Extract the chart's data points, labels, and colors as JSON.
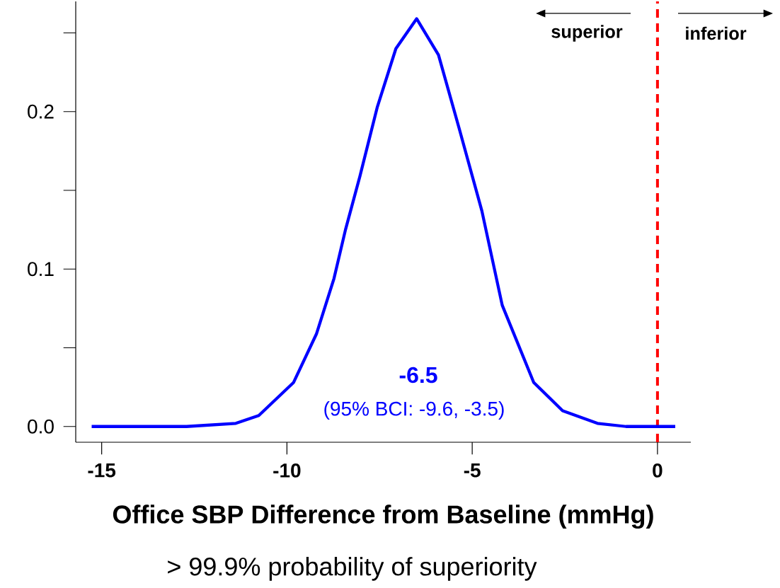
{
  "chart_data": {
    "type": "line",
    "xlabel": "Office SBP Difference from Baseline (mmHg)",
    "x": [
      -15.27,
      -12.71,
      -11.38,
      -10.76,
      -9.82,
      -9.2,
      -8.73,
      -8.42,
      -8.03,
      -7.56,
      -7.06,
      -6.5,
      -5.91,
      -5.36,
      -4.74,
      -4.19,
      -3.34,
      -2.56,
      -1.62,
      -0.85,
      0.48
    ],
    "values": [
      0,
      0,
      0.002,
      0.007,
      0.028,
      0.059,
      0.094,
      0.125,
      0.159,
      0.203,
      0.24,
      0.259,
      0.236,
      0.19,
      0.137,
      0.077,
      0.028,
      0.01,
      0.002,
      0,
      0
    ],
    "color": "#0000ff",
    "xlim": [
      -15.7,
      0.9
    ],
    "ylim": [
      -0.01,
      0.27
    ],
    "xticks": [
      -15,
      -10,
      -5,
      0
    ],
    "yticks": [
      {
        "value": 0,
        "label": "0.0"
      },
      0.1,
      0.2
    ],
    "ref_lines": [
      {
        "axis": "x",
        "value": 0,
        "color": "#ff0000",
        "line_style": "dashed"
      }
    ],
    "annotations": [
      "-6.5",
      "(95% BCI: -9.6, -3.5)",
      "superior",
      "inferior",
      "> 99.9% probability of superiority"
    ],
    "grid": false
  }
}
